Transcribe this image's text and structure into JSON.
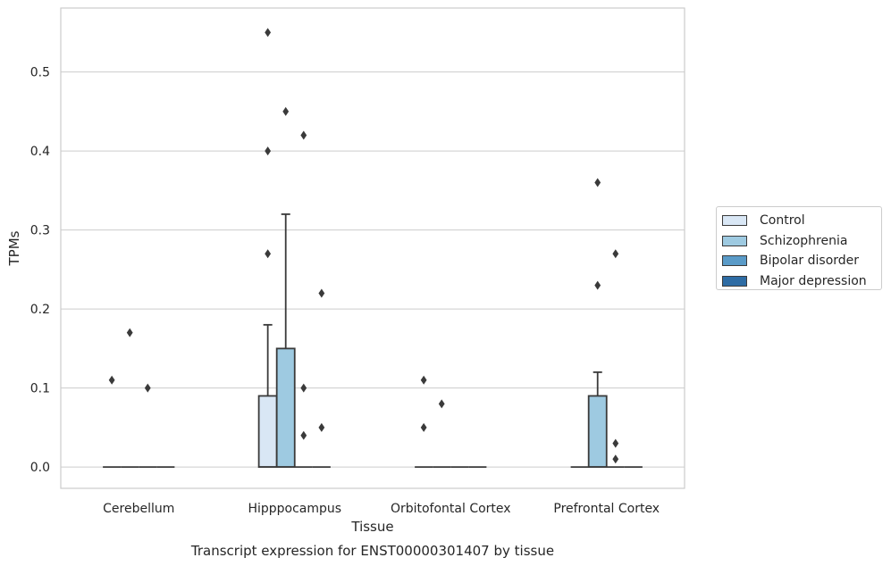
{
  "chart_data": {
    "type": "box",
    "title": "",
    "caption": "Transcript expression for ENST00000301407 by tissue",
    "xlabel": "Tissue",
    "ylabel": "TPMs",
    "ylim": [
      -0.027,
      0.581
    ],
    "yticks": [
      0.0,
      0.1,
      0.2,
      0.3,
      0.4,
      0.5
    ],
    "ytick_labels": [
      "0.0",
      "0.1",
      "0.2",
      "0.3",
      "0.4",
      "0.5"
    ],
    "grid": "horizontal",
    "legend_position": "right",
    "categories": [
      "Cerebellum",
      "Hipppocampus",
      "Orbitofontal Cortex",
      "Prefrontal Cortex"
    ],
    "series": [
      {
        "name": "Control",
        "color": "#d9e7f5",
        "boxes": [
          {
            "q1": 0,
            "median": 0,
            "q3": 0,
            "whisker_low": 0,
            "whisker_high": 0,
            "outliers": [
              0.11
            ]
          },
          {
            "q1": 0,
            "median": 0,
            "q3": 0.09,
            "whisker_low": 0,
            "whisker_high": 0.18,
            "outliers": [
              0.55,
              0.4,
              0.27
            ]
          },
          {
            "q1": 0,
            "median": 0,
            "q3": 0,
            "whisker_low": 0,
            "whisker_high": 0,
            "outliers": [
              0.11,
              0.05
            ]
          },
          {
            "q1": 0,
            "median": 0,
            "q3": 0,
            "whisker_low": 0,
            "whisker_high": 0,
            "outliers": []
          }
        ]
      },
      {
        "name": "Schizophrenia",
        "color": "#9ecae1",
        "boxes": [
          {
            "q1": 0,
            "median": 0,
            "q3": 0,
            "whisker_low": 0,
            "whisker_high": 0,
            "outliers": [
              0.17
            ]
          },
          {
            "q1": 0,
            "median": 0,
            "q3": 0.15,
            "whisker_low": 0,
            "whisker_high": 0.32,
            "outliers": [
              0.45
            ]
          },
          {
            "q1": 0,
            "median": 0,
            "q3": 0,
            "whisker_low": 0,
            "whisker_high": 0,
            "outliers": [
              0.08
            ]
          },
          {
            "q1": 0,
            "median": 0,
            "q3": 0.09,
            "whisker_low": 0,
            "whisker_high": 0.12,
            "outliers": [
              0.36,
              0.23
            ]
          }
        ]
      },
      {
        "name": "Bipolar disorder",
        "color": "#5a9bc8",
        "boxes": [
          {
            "q1": 0,
            "median": 0,
            "q3": 0,
            "whisker_low": 0,
            "whisker_high": 0,
            "outliers": [
              0.1
            ]
          },
          {
            "q1": 0,
            "median": 0,
            "q3": 0,
            "whisker_low": 0,
            "whisker_high": 0,
            "outliers": [
              0.42,
              0.1,
              0.04
            ]
          },
          {
            "q1": 0,
            "median": 0,
            "q3": 0,
            "whisker_low": 0,
            "whisker_high": 0,
            "outliers": []
          },
          {
            "q1": 0,
            "median": 0,
            "q3": 0,
            "whisker_low": 0,
            "whisker_high": 0,
            "outliers": [
              0.27,
              0.03,
              0.01
            ]
          }
        ]
      },
      {
        "name": "Major depression",
        "color": "#2e6ca4",
        "boxes": [
          {
            "q1": 0,
            "median": 0,
            "q3": 0,
            "whisker_low": 0,
            "whisker_high": 0,
            "outliers": []
          },
          {
            "q1": 0,
            "median": 0,
            "q3": 0,
            "whisker_low": 0,
            "whisker_high": 0,
            "outliers": [
              0.22,
              0.05
            ]
          },
          {
            "q1": 0,
            "median": 0,
            "q3": 0,
            "whisker_low": 0,
            "whisker_high": 0,
            "outliers": []
          },
          {
            "q1": 0,
            "median": 0,
            "q3": 0,
            "whisker_low": 0,
            "whisker_high": 0,
            "outliers": []
          }
        ]
      }
    ]
  },
  "colors": {
    "grid": "#cccccc",
    "frame": "#cccccc",
    "box_edge": "#3a3a3a",
    "outlier": "#3a3a3a",
    "text": "#262626"
  }
}
